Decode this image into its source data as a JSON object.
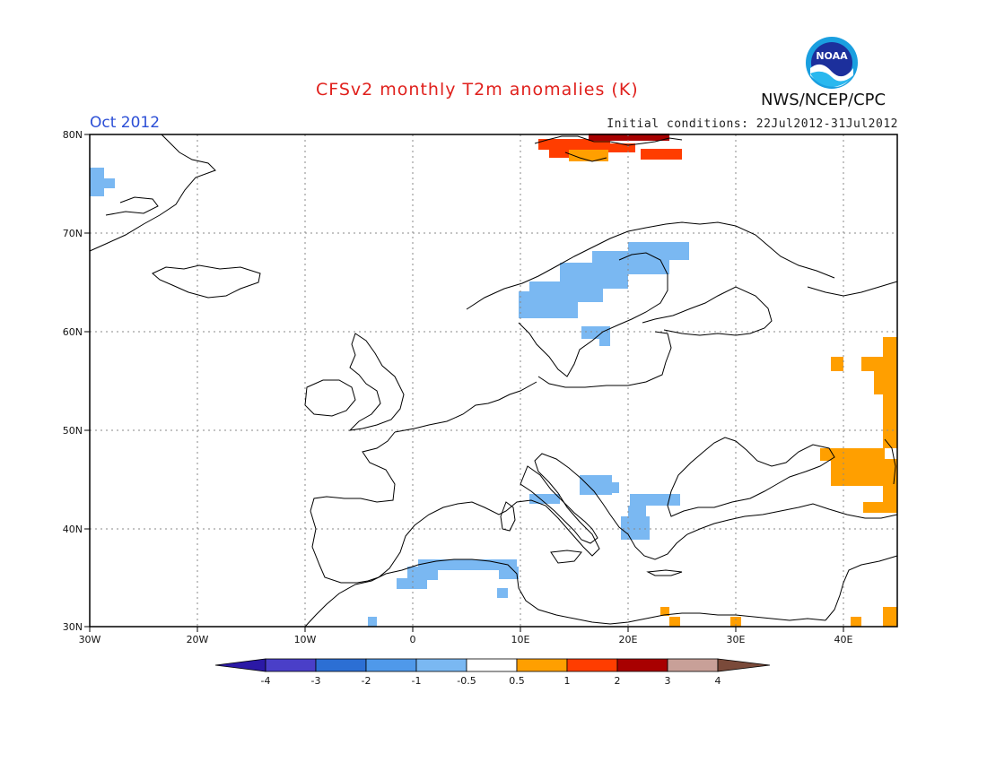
{
  "header": {
    "title": "CFSv2 monthly T2m anomalies (K)",
    "month": "Oct 2012",
    "initial_conditions": "Initial conditions: 22Jul2012-31Jul2012",
    "agency": "NWS/NCEP/CPC",
    "logo_text": "NOAA"
  },
  "map": {
    "lon_range": [
      -30,
      45
    ],
    "lat_range": [
      30,
      80
    ],
    "lat_ticks": [
      "30N",
      "40N",
      "50N",
      "60N",
      "70N",
      "80N"
    ],
    "lon_ticks": [
      "30W",
      "20W",
      "10W",
      "0",
      "10E",
      "20E",
      "30E",
      "40E"
    ],
    "grid": true
  },
  "colorbar": {
    "labels": [
      "-4",
      "-3",
      "-2",
      "-1",
      "-0.5",
      "0.5",
      "1",
      "2",
      "3",
      "4"
    ],
    "colors": [
      "#2b19a6",
      "#4a3fc8",
      "#2c6fd4",
      "#4f99ea",
      "#7ab8f2",
      "#ffffff",
      "#ff9f00",
      "#ff3d00",
      "#a80000",
      "#c8a098",
      "#7a4a3a"
    ]
  }
}
